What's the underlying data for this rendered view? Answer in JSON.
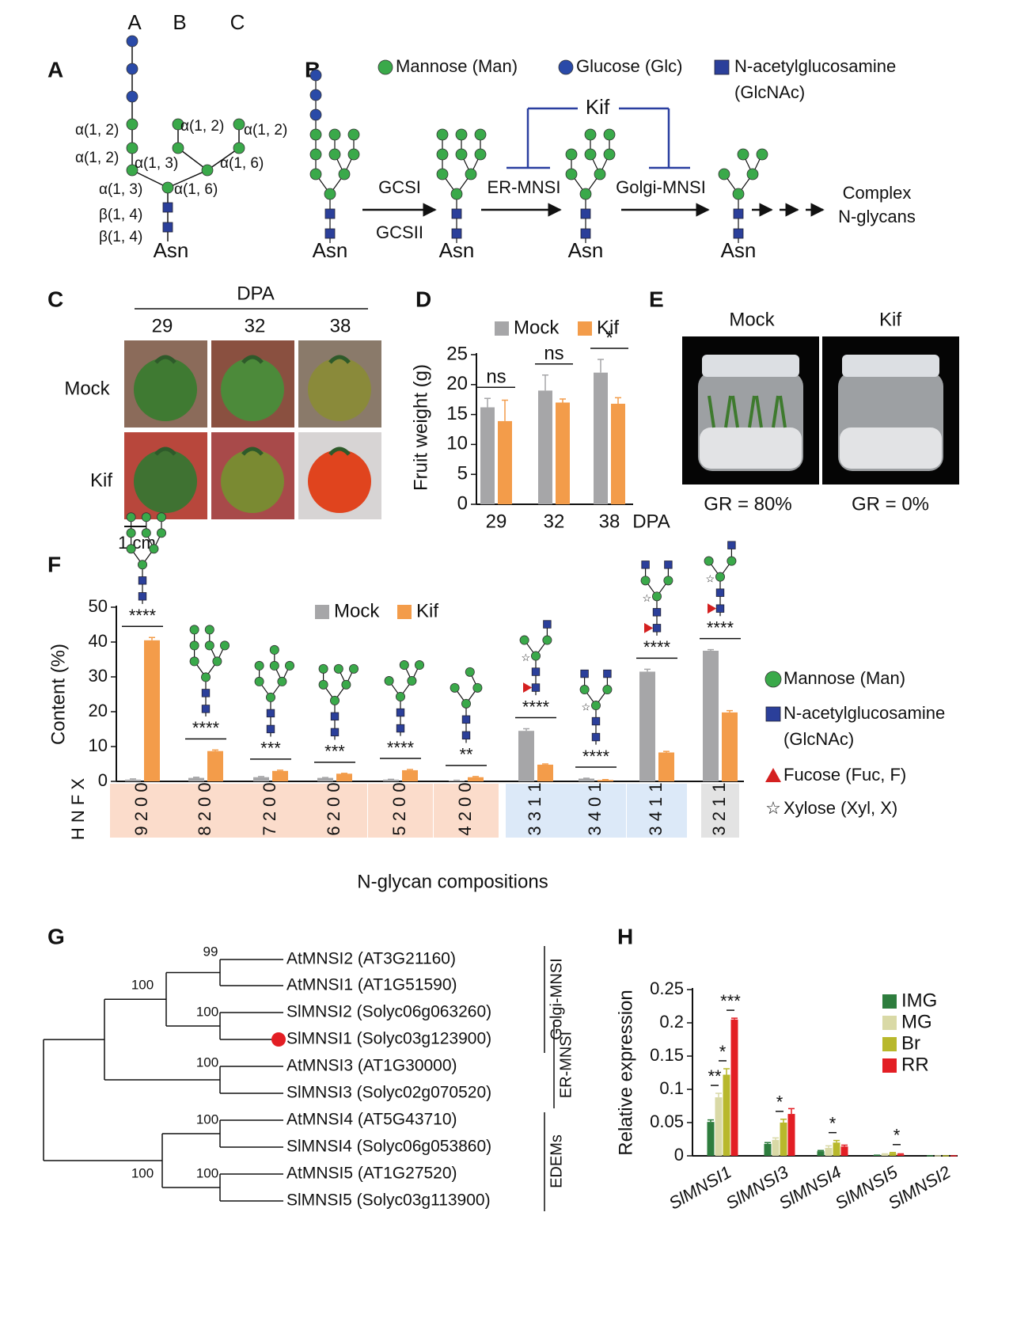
{
  "panel_labels": [
    "A",
    "B",
    "C",
    "D",
    "E",
    "F",
    "G",
    "H"
  ],
  "panel_a": {
    "branches": [
      "A",
      "B",
      "C"
    ],
    "linkages": [
      "α(1, 2)",
      "α(1, 2)",
      "α(1, 3)",
      "α(1, 3)",
      "α(1, 2)",
      "α(1, 2)",
      "α(1, 6)",
      "α(1, 6)",
      "β(1, 4)",
      "β(1, 4)"
    ],
    "root": "Asn"
  },
  "panel_b": {
    "legend": [
      "Mannose (Man)",
      "Glucose (Glc)",
      "N-acetylglucosamine",
      "(GlcNAc)"
    ],
    "inhibitor": "Kif",
    "enzymes": [
      "GCSI",
      "GCSII",
      "ER-MNSI",
      "Golgi-MNSI"
    ],
    "product": [
      "Complex",
      "N-glycans"
    ],
    "roots": [
      "Asn",
      "Asn",
      "Asn",
      "Asn"
    ]
  },
  "panel_c": {
    "header": "DPA",
    "days": [
      "29",
      "32",
      "38"
    ],
    "rows": [
      "Mock",
      "Kif"
    ],
    "scale": "1 cm"
  },
  "panel_e": {
    "columns": [
      "Mock",
      "Kif"
    ],
    "rates": [
      "GR = 80%",
      "GR = 0%"
    ]
  },
  "panel_f_legend": [
    "Mannose (Man)",
    "N-acetylglucosamine",
    "(GlcNAc)",
    "Fucose (Fuc, F)",
    "Xylose (Xyl, X)"
  ],
  "panel_g": {
    "leaves": [
      "AtMNSI2 (AT3G21160)",
      "AtMNSI1 (AT1G51590)",
      "SlMNSI2 (Solyc06g063260)",
      "SlMNSI1 (Solyc03g123900)",
      "AtMNSI3 (AT1G30000)",
      "SlMNSI3 (Solyc02g070520)",
      "AtMNSI4 (AT5G43710)",
      "SlMNSI4 (Solyc06g053860)",
      "AtMNSI5 (AT1G27520)",
      "SlMNSI5 (Solyc03g113900)"
    ],
    "support": [
      "99",
      "100",
      "100",
      "100",
      "100",
      "100",
      "100"
    ],
    "groups": [
      "Golgi-MNSI",
      "ER-MNSI",
      "EDEMs"
    ]
  },
  "chart_data": [
    {
      "type": "bar",
      "y_label": "Fruit weight (g)",
      "x_label": "DPA",
      "categories": [
        "29",
        "32",
        "38"
      ],
      "series": [
        {
          "name": "Mock",
          "color": "#a6a6a8",
          "values": [
            16.2,
            19,
            22
          ],
          "errors": [
            1.5,
            2.6,
            2.2
          ]
        },
        {
          "name": "Kif",
          "color": "#f39c4a",
          "values": [
            13.9,
            17,
            16.8
          ],
          "errors": [
            3.5,
            0.6,
            1.0
          ]
        }
      ],
      "significance": [
        "ns",
        "ns",
        "*"
      ],
      "ylim": [
        0,
        25
      ],
      "yticks": [
        0,
        5,
        10,
        15,
        20,
        25
      ]
    },
    {
      "type": "bar",
      "y_label": "Content  (%)",
      "x_label": "N-glycan compositions",
      "row_label": "H N F X",
      "categories": [
        "9 2 0 0",
        "8 2 0 0",
        "7 2 0 0",
        "6 2 0 0",
        "5 2 0 0",
        "4 2 0 0",
        "3 3 1 1",
        "3 4 0 1",
        "3 4 1 1",
        "3 2 1 1"
      ],
      "category_colors": [
        "#fbdccb",
        "#fbdccb",
        "#fbdccb",
        "#fbdccb",
        "#fbdccb",
        "#fbdccb",
        "#dce9f8",
        "#dce9f8",
        "#dce9f8",
        "#e3e3e3"
      ],
      "series": [
        {
          "name": "Mock",
          "color": "#a6a6a8",
          "values": [
            0.5,
            1,
            1.2,
            1,
            0.5,
            0.2,
            14.5,
            0.8,
            31.5,
            37.5
          ],
          "errors": [
            0.2,
            0.2,
            0.2,
            0.1,
            0.1,
            0.1,
            0.6,
            0.1,
            0.7,
            0.3
          ]
        },
        {
          "name": "Kif",
          "color": "#f39c4a",
          "values": [
            40.5,
            8.7,
            3,
            2.2,
            3.2,
            1.2,
            4.8,
            0.4,
            8.3,
            19.8
          ],
          "errors": [
            0.8,
            0.3,
            0.2,
            0.1,
            0.2,
            0.2,
            0.2,
            0.1,
            0.3,
            0.5
          ]
        }
      ],
      "significance": [
        "****",
        "****",
        "***",
        "***",
        "****",
        "**",
        "****",
        "****",
        "****",
        "****"
      ],
      "ylim": [
        0,
        50
      ],
      "yticks": [
        0,
        10,
        20,
        30,
        40,
        50
      ]
    },
    {
      "type": "bar",
      "y_label": "Relative expression",
      "categories": [
        "SlMNSI1",
        "SlMNSI3",
        "SlMNSI4",
        "SlMNSI5",
        "SlMNSI2"
      ],
      "series": [
        {
          "name": "IMG",
          "color": "#2e7d3e",
          "values": [
            0.051,
            0.018,
            0.007,
            0.001,
            0
          ],
          "errors": [
            0.003,
            0.002,
            0.001,
            0,
            0
          ]
        },
        {
          "name": "MG",
          "color": "#d9d9a6",
          "values": [
            0.088,
            0.024,
            0.012,
            0.002,
            0
          ],
          "errors": [
            0.006,
            0.003,
            0.003,
            0.001,
            0
          ]
        },
        {
          "name": "Br",
          "color": "#b8b82c",
          "values": [
            0.122,
            0.05,
            0.02,
            0.004,
            0
          ],
          "errors": [
            0.009,
            0.005,
            0.003,
            0.001,
            0
          ]
        },
        {
          "name": "RR",
          "color": "#e31e24",
          "values": [
            0.205,
            0.063,
            0.014,
            0.002,
            0
          ],
          "errors": [
            0.002,
            0.008,
            0.002,
            0.001,
            0
          ]
        }
      ],
      "annotations": [
        "**",
        "*",
        "***",
        "*",
        "*",
        "*"
      ],
      "ylim": [
        0,
        0.25
      ],
      "yticks": [
        0,
        0.05,
        0.1,
        0.15,
        0.2,
        0.25
      ]
    }
  ]
}
